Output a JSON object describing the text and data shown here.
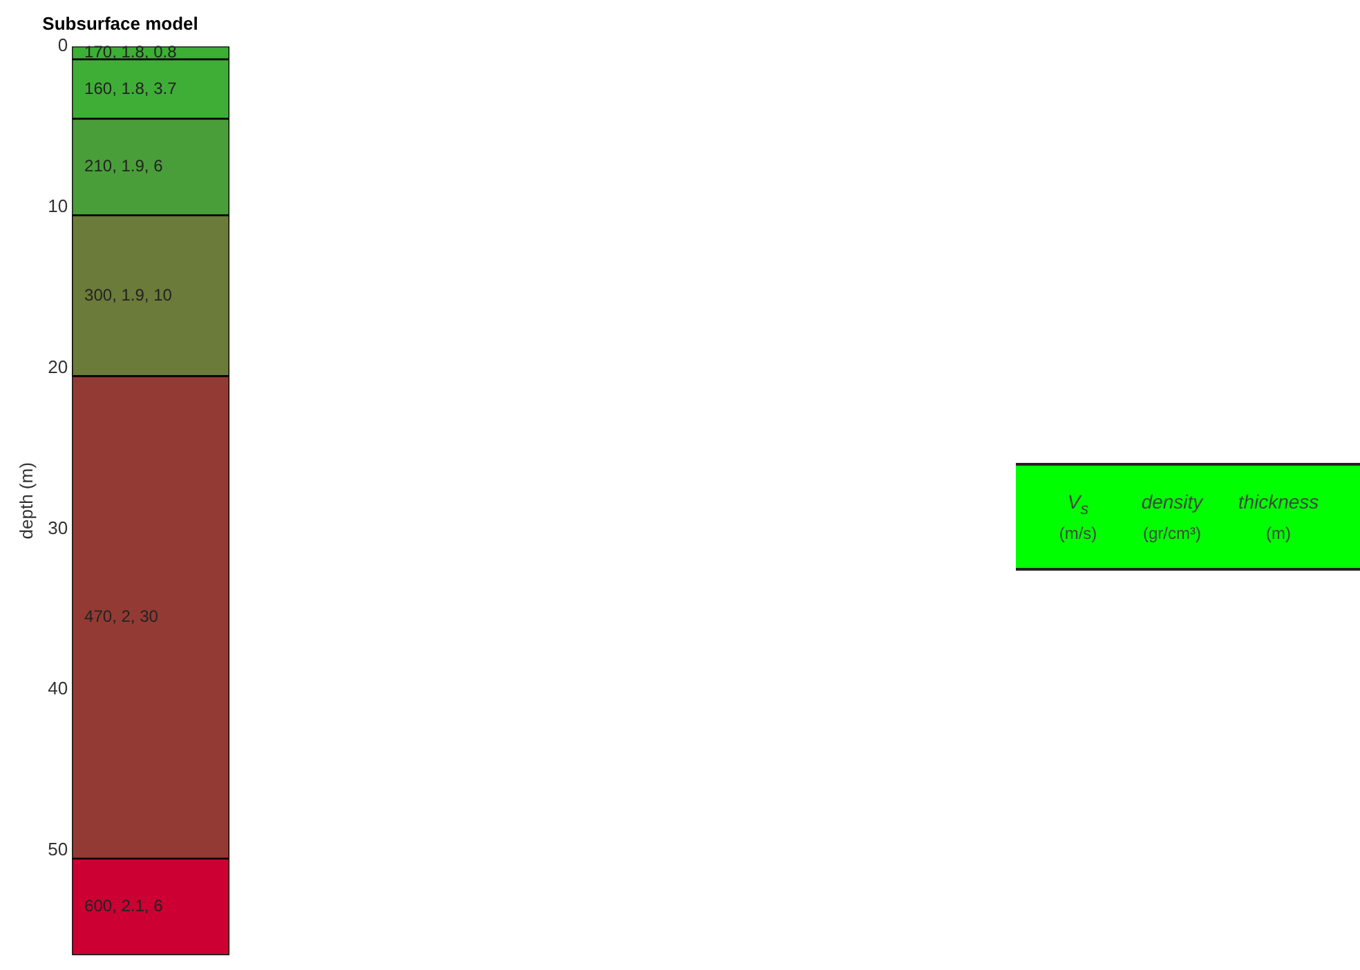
{
  "chart_data": {
    "type": "bar",
    "title": "Subsurface model",
    "ylabel": "depth (m)",
    "categories": [
      null
    ],
    "stacked": true,
    "tick_labels": "y",
    "grid": false,
    "ylim": [
      56.5,
      0
    ],
    "yticks": [
      0,
      10,
      20,
      30,
      40,
      50
    ],
    "series": [
      {
        "color": "#3cb034",
        "values": [
          0.8
        ],
        "value_labels": [
          "170, 1.8, 0.8"
        ]
      },
      {
        "color": "#3fae37",
        "values": [
          3.7
        ],
        "value_labels": [
          "160, 1.8, 3.7"
        ]
      },
      {
        "color": "#4a9e3a",
        "values": [
          6
        ],
        "value_labels": [
          "210, 1.9, 6"
        ]
      },
      {
        "color": "#6b7b3a",
        "values": [
          10
        ],
        "value_labels": [
          "300, 1.9, 10"
        ]
      },
      {
        "color": "#943a34",
        "values": [
          30
        ],
        "value_labels": [
          "470, 2, 30"
        ]
      },
      {
        "color": "#cc0033",
        "values": [
          6
        ],
        "value_labels": [
          "600, 2.1, 6"
        ]
      }
    ],
    "annotations": [
      "V$_{s}$",
      "density",
      "thickness",
      "(m/s)",
      "(gr/cm³)",
      "(m)"
    ]
  }
}
